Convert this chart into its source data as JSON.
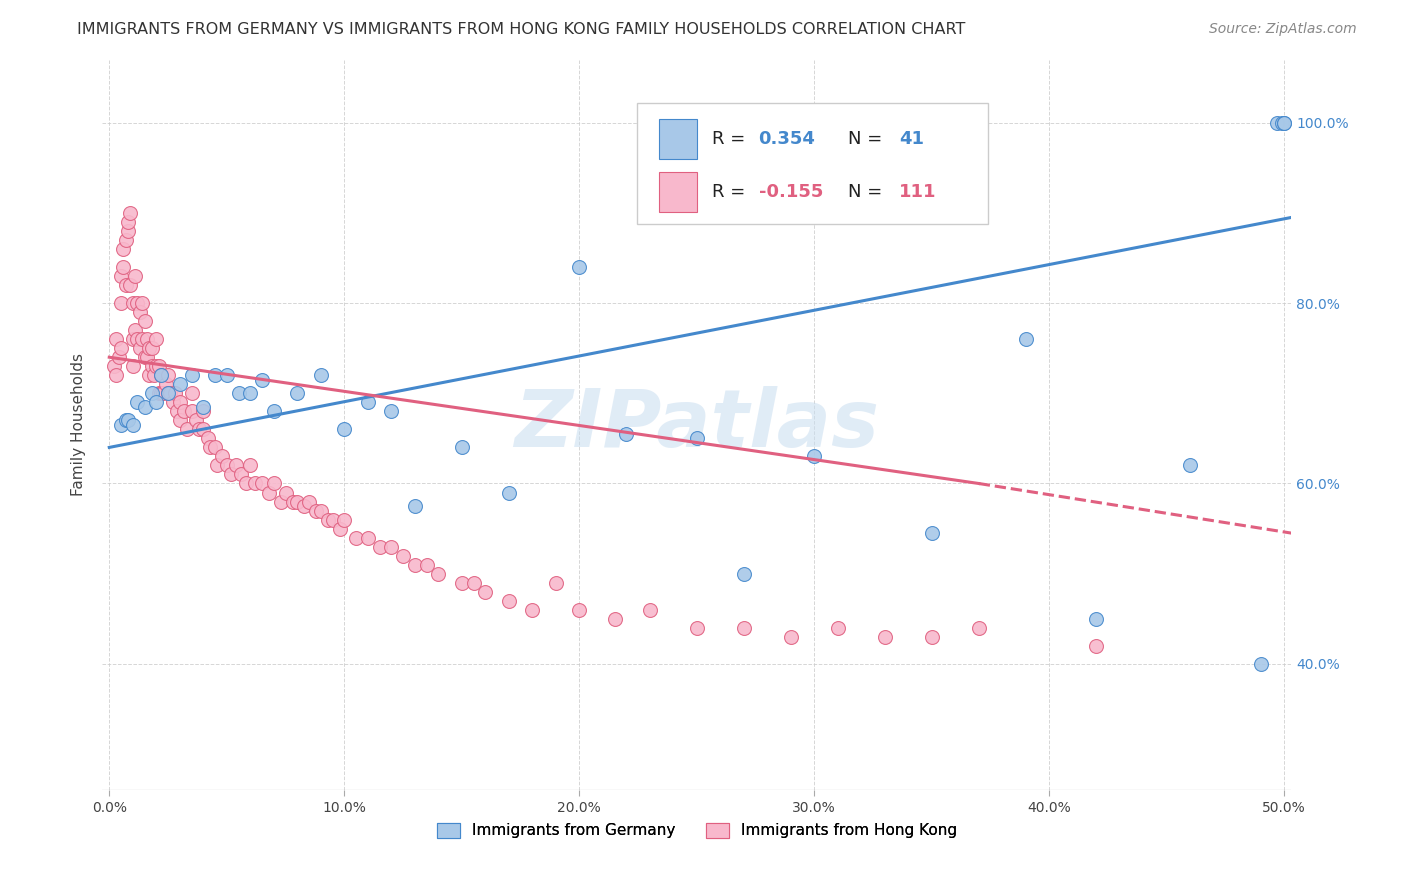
{
  "title": "IMMIGRANTS FROM GERMANY VS IMMIGRANTS FROM HONG KONG FAMILY HOUSEHOLDS CORRELATION CHART",
  "source": "Source: ZipAtlas.com",
  "ylabel": "Family Households",
  "x_tick_labels": [
    "0.0%",
    "10.0%",
    "20.0%",
    "30.0%",
    "40.0%",
    "50.0%"
  ],
  "x_tick_positions": [
    0.0,
    0.1,
    0.2,
    0.3,
    0.4,
    0.5
  ],
  "y_tick_labels": [
    "40.0%",
    "60.0%",
    "80.0%",
    "100.0%"
  ],
  "y_tick_positions": [
    0.4,
    0.6,
    0.8,
    1.0
  ],
  "xlim": [
    -0.003,
    0.503
  ],
  "ylim": [
    0.26,
    1.07
  ],
  "R_germany": 0.354,
  "N_germany": 41,
  "R_hongkong": -0.155,
  "N_hongkong": 111,
  "color_germany": "#a8c8e8",
  "color_germany_line": "#4488cc",
  "color_hongkong": "#f8b8cc",
  "color_hongkong_line": "#e06080",
  "watermark": "ZIPatlas",
  "title_fontsize": 11.5,
  "axis_label_fontsize": 11,
  "tick_fontsize": 10,
  "source_fontsize": 10,
  "germany_x": [
    0.005,
    0.007,
    0.008,
    0.01,
    0.012,
    0.015,
    0.018,
    0.02,
    0.022,
    0.025,
    0.03,
    0.035,
    0.04,
    0.045,
    0.05,
    0.055,
    0.06,
    0.065,
    0.07,
    0.08,
    0.09,
    0.1,
    0.11,
    0.12,
    0.13,
    0.15,
    0.17,
    0.2,
    0.22,
    0.25,
    0.27,
    0.3,
    0.35,
    0.39,
    0.42,
    0.46,
    0.49,
    0.497,
    0.499,
    0.5,
    0.5
  ],
  "germany_y": [
    0.665,
    0.67,
    0.67,
    0.665,
    0.69,
    0.685,
    0.7,
    0.69,
    0.72,
    0.7,
    0.71,
    0.72,
    0.685,
    0.72,
    0.72,
    0.7,
    0.7,
    0.715,
    0.68,
    0.7,
    0.72,
    0.66,
    0.69,
    0.68,
    0.575,
    0.64,
    0.59,
    0.84,
    0.655,
    0.65,
    0.5,
    0.63,
    0.545,
    0.76,
    0.45,
    0.62,
    0.4,
    1.0,
    1.0,
    1.0,
    1.0
  ],
  "hongkong_x": [
    0.002,
    0.003,
    0.003,
    0.004,
    0.005,
    0.005,
    0.005,
    0.006,
    0.006,
    0.007,
    0.007,
    0.008,
    0.008,
    0.009,
    0.009,
    0.01,
    0.01,
    0.01,
    0.011,
    0.011,
    0.012,
    0.012,
    0.013,
    0.013,
    0.014,
    0.014,
    0.015,
    0.015,
    0.016,
    0.016,
    0.017,
    0.017,
    0.018,
    0.018,
    0.019,
    0.02,
    0.02,
    0.021,
    0.021,
    0.022,
    0.022,
    0.023,
    0.024,
    0.025,
    0.025,
    0.026,
    0.027,
    0.028,
    0.029,
    0.03,
    0.03,
    0.032,
    0.033,
    0.035,
    0.035,
    0.037,
    0.038,
    0.04,
    0.04,
    0.042,
    0.043,
    0.045,
    0.046,
    0.048,
    0.05,
    0.052,
    0.054,
    0.056,
    0.058,
    0.06,
    0.062,
    0.065,
    0.068,
    0.07,
    0.073,
    0.075,
    0.078,
    0.08,
    0.083,
    0.085,
    0.088,
    0.09,
    0.093,
    0.095,
    0.098,
    0.1,
    0.105,
    0.11,
    0.115,
    0.12,
    0.125,
    0.13,
    0.135,
    0.14,
    0.15,
    0.155,
    0.16,
    0.17,
    0.18,
    0.19,
    0.2,
    0.215,
    0.23,
    0.25,
    0.27,
    0.29,
    0.31,
    0.33,
    0.35,
    0.37,
    0.42
  ],
  "hongkong_y": [
    0.73,
    0.72,
    0.76,
    0.74,
    0.75,
    0.8,
    0.83,
    0.84,
    0.86,
    0.82,
    0.87,
    0.88,
    0.89,
    0.82,
    0.9,
    0.73,
    0.76,
    0.8,
    0.77,
    0.83,
    0.76,
    0.8,
    0.75,
    0.79,
    0.76,
    0.8,
    0.74,
    0.78,
    0.74,
    0.76,
    0.72,
    0.75,
    0.73,
    0.75,
    0.72,
    0.73,
    0.76,
    0.7,
    0.73,
    0.7,
    0.72,
    0.7,
    0.71,
    0.7,
    0.72,
    0.7,
    0.69,
    0.7,
    0.68,
    0.69,
    0.67,
    0.68,
    0.66,
    0.68,
    0.7,
    0.67,
    0.66,
    0.66,
    0.68,
    0.65,
    0.64,
    0.64,
    0.62,
    0.63,
    0.62,
    0.61,
    0.62,
    0.61,
    0.6,
    0.62,
    0.6,
    0.6,
    0.59,
    0.6,
    0.58,
    0.59,
    0.58,
    0.58,
    0.575,
    0.58,
    0.57,
    0.57,
    0.56,
    0.56,
    0.55,
    0.56,
    0.54,
    0.54,
    0.53,
    0.53,
    0.52,
    0.51,
    0.51,
    0.5,
    0.49,
    0.49,
    0.48,
    0.47,
    0.46,
    0.49,
    0.46,
    0.45,
    0.46,
    0.44,
    0.44,
    0.43,
    0.44,
    0.43,
    0.43,
    0.44,
    0.42
  ],
  "ger_trend_x0": 0.0,
  "ger_trend_y0": 0.64,
  "ger_trend_x1": 0.503,
  "ger_trend_y1": 0.895,
  "hk_trend_x0": 0.0,
  "hk_trend_y0": 0.74,
  "hk_trend_x1_solid": 0.37,
  "hk_trend_y1_solid": 0.6,
  "hk_trend_x1_dash": 0.503,
  "hk_trend_y1_dash": 0.545
}
